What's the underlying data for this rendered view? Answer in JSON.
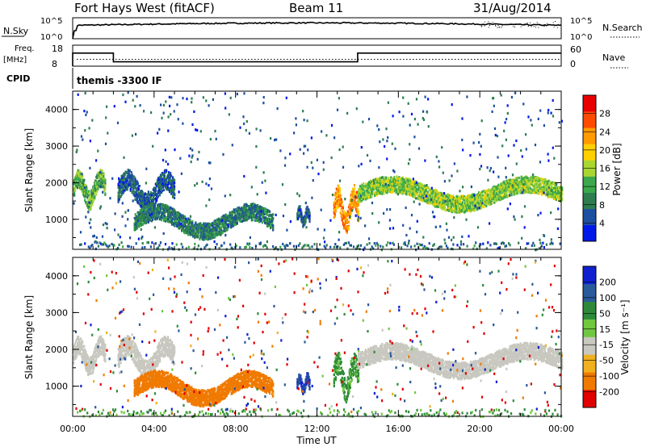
{
  "header": {
    "station": "Fort Hays West (fitACF)",
    "beam": "Beam 11",
    "date": "31/Aug/2014"
  },
  "noise_panel": {
    "left_label": "N.Sky",
    "right_label": "N.Search",
    "left_ticks": [
      "10^5",
      "10^0"
    ],
    "right_ticks": [
      "10^5",
      "10^0"
    ]
  },
  "freq_panel": {
    "left_label_line1": "Freq.",
    "left_label_line2": "[MHz]",
    "right_label": "Nave",
    "left_ticks": [
      "18",
      "8"
    ],
    "right_ticks": [
      "60",
      "0"
    ],
    "cpid_label": "CPID",
    "cpid_text": "themis -3300 IF"
  },
  "chart_data": [
    {
      "type": "heatmap",
      "title": "",
      "ylabel": "Slant Range [km]",
      "xlabel": "",
      "ylim": [
        180,
        4500
      ],
      "yticks": [
        "4000",
        "3000",
        "2000",
        "1000"
      ],
      "yticks_values": [
        4000,
        3000,
        2000,
        1000
      ],
      "colorbar": {
        "label": "Power [dB]",
        "ticks": [
          "28",
          "24",
          "20",
          "16",
          "12",
          "8",
          "4"
        ],
        "range": [
          0,
          30
        ]
      },
      "echo_regions": [
        {
          "t0": 0.0,
          "t1": 1.6,
          "r0": 1500,
          "r1": 2500,
          "value": 12
        },
        {
          "t0": 2.2,
          "t1": 5.0,
          "r0": 1400,
          "r1": 2500,
          "value": 6
        },
        {
          "t0": 3.0,
          "t1": 9.8,
          "r0": 650,
          "r1": 1550,
          "value": 8
        },
        {
          "t0": 11.0,
          "t1": 11.6,
          "r0": 900,
          "r1": 1450,
          "value": 6
        },
        {
          "t0": 12.8,
          "t1": 14.0,
          "r0": 850,
          "r1": 2100,
          "value": 22
        },
        {
          "t0": 14.0,
          "t1": 24.0,
          "r0": 1400,
          "r1": 2300,
          "value": 14
        }
      ]
    },
    {
      "type": "heatmap",
      "title": "",
      "ylabel": "Slant Range [km]",
      "xlabel": "Time UT",
      "ylim": [
        180,
        4500
      ],
      "yticks": [
        "4000",
        "3000",
        "2000",
        "1000"
      ],
      "yticks_values": [
        4000,
        3000,
        2000,
        1000
      ],
      "xticks": [
        "00:00",
        "04:00",
        "08:00",
        "12:00",
        "16:00",
        "20:00",
        "00:00"
      ],
      "xticks_values": [
        0,
        4,
        8,
        12,
        16,
        20,
        24
      ],
      "colorbar": {
        "label": "Velocity [m s⁻¹]",
        "ticks": [
          "200",
          "100",
          "50",
          "15",
          "-15",
          "-50",
          "-100",
          "-200"
        ]
      },
      "echo_regions": [
        {
          "t0": 0.0,
          "t1": 1.6,
          "r0": 1500,
          "r1": 2500,
          "value": 0
        },
        {
          "t0": 2.2,
          "t1": 5.0,
          "r0": 1400,
          "r1": 2500,
          "value": 0
        },
        {
          "t0": 3.0,
          "t1": 9.8,
          "r0": 650,
          "r1": 1550,
          "value": -60
        },
        {
          "t0": 11.0,
          "t1": 11.6,
          "r0": 900,
          "r1": 1450,
          "value": 150
        },
        {
          "t0": 12.8,
          "t1": 14.0,
          "r0": 850,
          "r1": 2100,
          "value": 40
        },
        {
          "t0": 14.0,
          "t1": 24.0,
          "r0": 1400,
          "r1": 2300,
          "value": 0
        }
      ]
    }
  ],
  "colors": {
    "power_scale": [
      "#0018e8",
      "#1d4fa0",
      "#2e7d4f",
      "#3aa84b",
      "#a8d632",
      "#ffd000",
      "#ff9a00",
      "#ff4a00",
      "#e80000"
    ],
    "velocity_scale": [
      "#1020d0",
      "#2a5a9a",
      "#2e8a3a",
      "#70c840",
      "#c8c8c0",
      "#f0b020",
      "#f07a00",
      "#e00000"
    ]
  }
}
